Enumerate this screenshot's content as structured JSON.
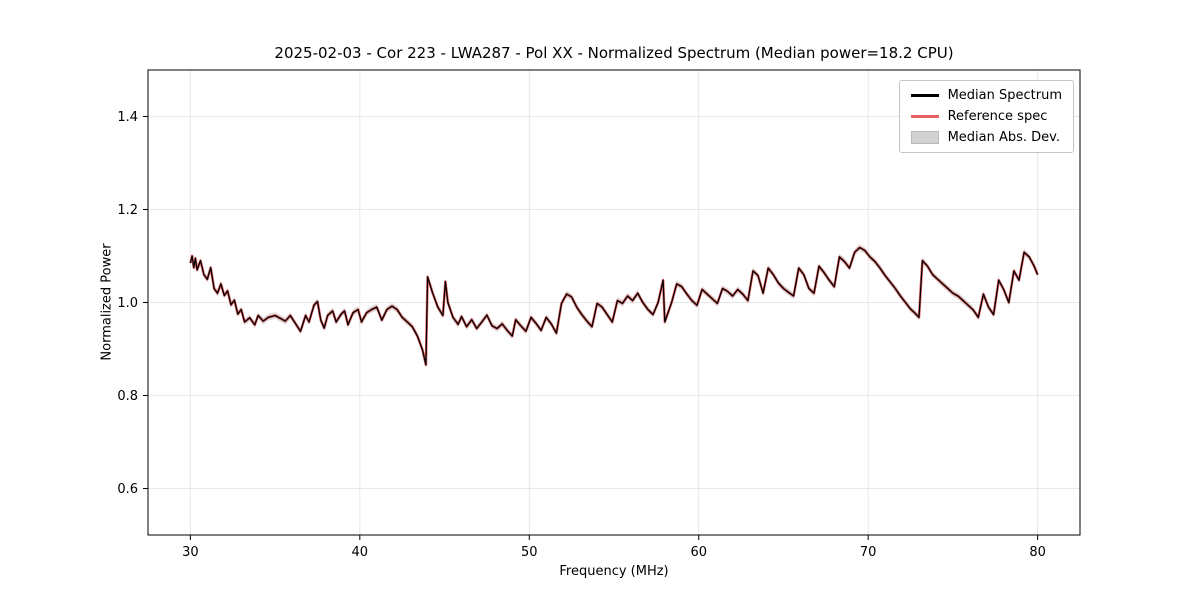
{
  "chart_data": {
    "type": "line",
    "title": "2025-02-03 - Cor 223 - LWA287 - Pol XX - Normalized Spectrum (Median power=18.2 CPU)",
    "xlabel": "Frequency (MHz)",
    "ylabel": "Normalized Power",
    "xlim": [
      27.5,
      82.5
    ],
    "ylim": [
      0.5,
      1.5
    ],
    "xticks": [
      30,
      40,
      50,
      60,
      70,
      80
    ],
    "xtick_labels": [
      "30",
      "40",
      "50",
      "60",
      "70",
      "80"
    ],
    "yticks": [
      0.6,
      0.8,
      1.0,
      1.2,
      1.4
    ],
    "ytick_labels": [
      "0.6",
      "0.8",
      "1.0",
      "1.2",
      "1.4"
    ],
    "grid": true,
    "legend_position": "upper right",
    "legend": [
      {
        "label": "Median Spectrum",
        "type": "line",
        "color": "#000000"
      },
      {
        "label": "Reference spec",
        "type": "line",
        "color": "#e86060"
      },
      {
        "label": "Median Abs. Dev.",
        "type": "patch",
        "color": "#c8c8c8"
      }
    ],
    "mad_halfwidth": 0.007,
    "mad_color": "#b5b5b5",
    "x": [
      30.0,
      30.1,
      30.2,
      30.3,
      30.4,
      30.6,
      30.8,
      31.0,
      31.2,
      31.4,
      31.6,
      31.8,
      32.0,
      32.2,
      32.4,
      32.6,
      32.8,
      33.0,
      33.2,
      33.5,
      33.8,
      34.0,
      34.3,
      34.6,
      35.0,
      35.3,
      35.6,
      35.9,
      36.2,
      36.5,
      36.8,
      37.0,
      37.3,
      37.5,
      37.7,
      37.9,
      38.1,
      38.4,
      38.6,
      38.9,
      39.1,
      39.3,
      39.6,
      39.9,
      40.1,
      40.4,
      40.7,
      41.0,
      41.3,
      41.6,
      41.9,
      42.2,
      42.5,
      42.8,
      43.1,
      43.4,
      43.7,
      43.9,
      44.0,
      44.3,
      44.6,
      44.9,
      45.05,
      45.2,
      45.5,
      45.8,
      46.0,
      46.3,
      46.6,
      46.9,
      47.2,
      47.5,
      47.8,
      48.1,
      48.4,
      48.7,
      49.0,
      49.2,
      49.5,
      49.8,
      50.1,
      50.4,
      50.7,
      51.0,
      51.3,
      51.6,
      51.9,
      52.2,
      52.5,
      52.8,
      53.1,
      53.4,
      53.7,
      54.0,
      54.3,
      54.6,
      54.9,
      55.2,
      55.5,
      55.8,
      56.1,
      56.4,
      56.7,
      57.0,
      57.3,
      57.6,
      57.9,
      58.0,
      58.4,
      58.7,
      59.0,
      59.3,
      59.6,
      59.9,
      60.2,
      60.5,
      60.8,
      61.1,
      61.4,
      61.7,
      62.0,
      62.3,
      62.6,
      62.9,
      63.2,
      63.5,
      63.8,
      64.1,
      64.4,
      64.7,
      65.0,
      65.3,
      65.6,
      65.9,
      66.2,
      66.5,
      66.8,
      67.1,
      67.4,
      67.7,
      68.0,
      68.3,
      68.6,
      68.9,
      69.2,
      69.5,
      69.8,
      70.1,
      70.4,
      70.7,
      71.0,
      71.3,
      71.6,
      71.9,
      72.2,
      72.5,
      72.8,
      73.0,
      73.2,
      73.5,
      73.8,
      74.1,
      74.4,
      74.7,
      75.0,
      75.3,
      75.6,
      75.9,
      76.2,
      76.5,
      76.8,
      77.1,
      77.4,
      77.7,
      78.0,
      78.3,
      78.6,
      78.9,
      79.2,
      79.5,
      79.8,
      80.0
    ],
    "series": [
      {
        "name": "Median Spectrum",
        "color": "#000000",
        "values": [
          1.085,
          1.1,
          1.075,
          1.095,
          1.07,
          1.09,
          1.06,
          1.05,
          1.075,
          1.03,
          1.02,
          1.04,
          1.015,
          1.025,
          0.995,
          1.005,
          0.975,
          0.985,
          0.958,
          0.967,
          0.952,
          0.972,
          0.96,
          0.968,
          0.972,
          0.966,
          0.96,
          0.972,
          0.955,
          0.938,
          0.972,
          0.958,
          0.995,
          1.002,
          0.962,
          0.945,
          0.972,
          0.982,
          0.958,
          0.975,
          0.982,
          0.952,
          0.978,
          0.985,
          0.958,
          0.978,
          0.985,
          0.99,
          0.962,
          0.985,
          0.992,
          0.985,
          0.968,
          0.958,
          0.948,
          0.928,
          0.898,
          0.866,
          1.055,
          1.02,
          0.99,
          0.972,
          1.045,
          1.0,
          0.968,
          0.953,
          0.97,
          0.948,
          0.963,
          0.944,
          0.958,
          0.973,
          0.95,
          0.944,
          0.954,
          0.94,
          0.928,
          0.963,
          0.95,
          0.938,
          0.968,
          0.955,
          0.94,
          0.968,
          0.954,
          0.934,
          0.998,
          1.018,
          1.012,
          0.99,
          0.974,
          0.96,
          0.948,
          0.998,
          0.99,
          0.974,
          0.958,
          1.004,
          0.998,
          1.014,
          1.004,
          1.02,
          1.0,
          0.985,
          0.974,
          1.0,
          1.048,
          0.958,
          1.0,
          1.04,
          1.034,
          1.018,
          1.004,
          0.994,
          1.028,
          1.018,
          1.008,
          0.998,
          1.03,
          1.024,
          1.014,
          1.028,
          1.018,
          1.004,
          1.068,
          1.058,
          1.02,
          1.074,
          1.06,
          1.042,
          1.03,
          1.022,
          1.014,
          1.074,
          1.06,
          1.03,
          1.02,
          1.078,
          1.064,
          1.048,
          1.034,
          1.098,
          1.088,
          1.074,
          1.108,
          1.118,
          1.112,
          1.098,
          1.088,
          1.074,
          1.058,
          1.044,
          1.03,
          1.014,
          1.0,
          0.986,
          0.976,
          0.968,
          1.09,
          1.078,
          1.06,
          1.05,
          1.04,
          1.03,
          1.02,
          1.014,
          1.004,
          0.994,
          0.984,
          0.968,
          1.018,
          0.99,
          0.974,
          1.048,
          1.028,
          1.0,
          1.068,
          1.048,
          1.108,
          1.098,
          1.078,
          1.06
        ]
      },
      {
        "name": "Reference spec",
        "color": "#e86060",
        "values": [
          1.085,
          1.1,
          1.075,
          1.095,
          1.07,
          1.09,
          1.06,
          1.05,
          1.075,
          1.03,
          1.02,
          1.04,
          1.015,
          1.025,
          0.995,
          1.005,
          0.975,
          0.985,
          0.958,
          0.967,
          0.952,
          0.972,
          0.96,
          0.968,
          0.972,
          0.966,
          0.96,
          0.972,
          0.955,
          0.938,
          0.972,
          0.958,
          0.995,
          1.002,
          0.962,
          0.945,
          0.972,
          0.982,
          0.958,
          0.975,
          0.982,
          0.952,
          0.978,
          0.985,
          0.958,
          0.978,
          0.985,
          0.99,
          0.962,
          0.985,
          0.992,
          0.985,
          0.968,
          0.958,
          0.948,
          0.928,
          0.898,
          0.866,
          1.055,
          1.02,
          0.99,
          0.972,
          1.045,
          1.0,
          0.968,
          0.953,
          0.97,
          0.948,
          0.963,
          0.944,
          0.958,
          0.973,
          0.95,
          0.944,
          0.954,
          0.94,
          0.928,
          0.963,
          0.95,
          0.938,
          0.968,
          0.955,
          0.94,
          0.968,
          0.954,
          0.934,
          0.998,
          1.018,
          1.012,
          0.99,
          0.974,
          0.96,
          0.948,
          0.998,
          0.99,
          0.974,
          0.958,
          1.004,
          0.998,
          1.014,
          1.004,
          1.02,
          1.0,
          0.985,
          0.974,
          1.0,
          1.048,
          0.958,
          1.0,
          1.04,
          1.034,
          1.018,
          1.004,
          0.994,
          1.028,
          1.018,
          1.008,
          0.998,
          1.03,
          1.024,
          1.014,
          1.028,
          1.018,
          1.004,
          1.068,
          1.058,
          1.02,
          1.074,
          1.06,
          1.042,
          1.03,
          1.022,
          1.014,
          1.074,
          1.06,
          1.03,
          1.02,
          1.078,
          1.064,
          1.048,
          1.034,
          1.098,
          1.088,
          1.074,
          1.108,
          1.118,
          1.112,
          1.098,
          1.088,
          1.074,
          1.058,
          1.044,
          1.03,
          1.014,
          1.0,
          0.986,
          0.976,
          0.968,
          1.09,
          1.078,
          1.06,
          1.05,
          1.04,
          1.03,
          1.02,
          1.014,
          1.004,
          0.994,
          0.984,
          0.968,
          1.018,
          0.99,
          0.974,
          1.048,
          1.028,
          1.0,
          1.068,
          1.048,
          1.108,
          1.098,
          1.078,
          1.06
        ]
      }
    ]
  }
}
